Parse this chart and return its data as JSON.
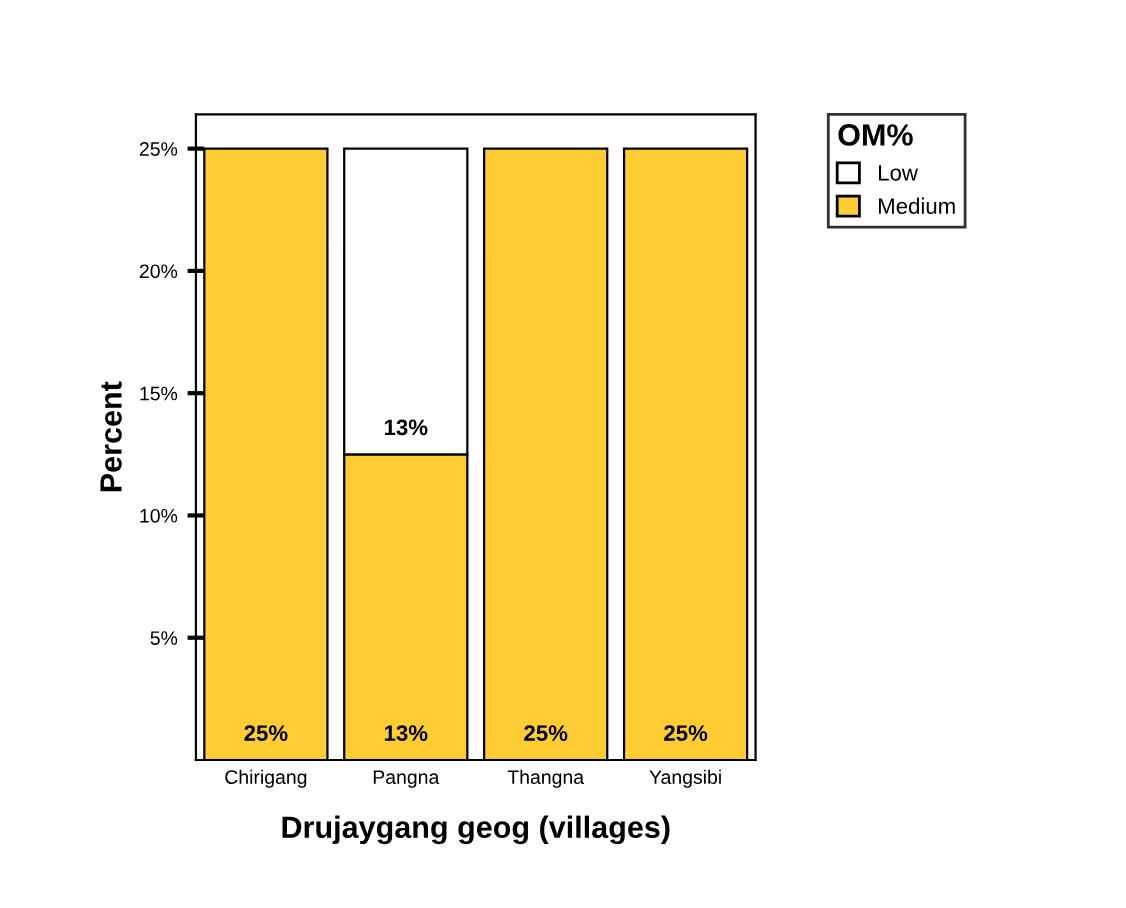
{
  "chart_data": {
    "type": "bar",
    "stacked": true,
    "xlabel": "Drujaygang geog (villages)",
    "ylabel": "Percent",
    "legend_title": "OM%",
    "legend": "top right",
    "categories": [
      "Chirigang",
      "Pangna",
      "Thangna",
      "Yangsibi"
    ],
    "series": [
      {
        "name": "Low",
        "color": "#ffffff",
        "values": [
          null,
          12.5,
          null,
          null
        ],
        "value_labels": [
          null,
          "13%",
          null,
          null
        ]
      },
      {
        "name": "Medium",
        "color": "#ffcc33",
        "values": [
          25,
          12.5,
          25,
          25
        ],
        "value_labels": [
          "25%",
          "13%",
          "25%",
          "25%"
        ]
      }
    ],
    "ylim": [
      0,
      26.4
    ],
    "yticks": [
      {
        "value": 5,
        "label": "5%"
      },
      {
        "value": 10,
        "label": "10%"
      },
      {
        "value": 15,
        "label": "15%"
      },
      {
        "value": 20,
        "label": "20%"
      },
      {
        "value": 25,
        "label": "25%"
      }
    ],
    "grid": false
  }
}
